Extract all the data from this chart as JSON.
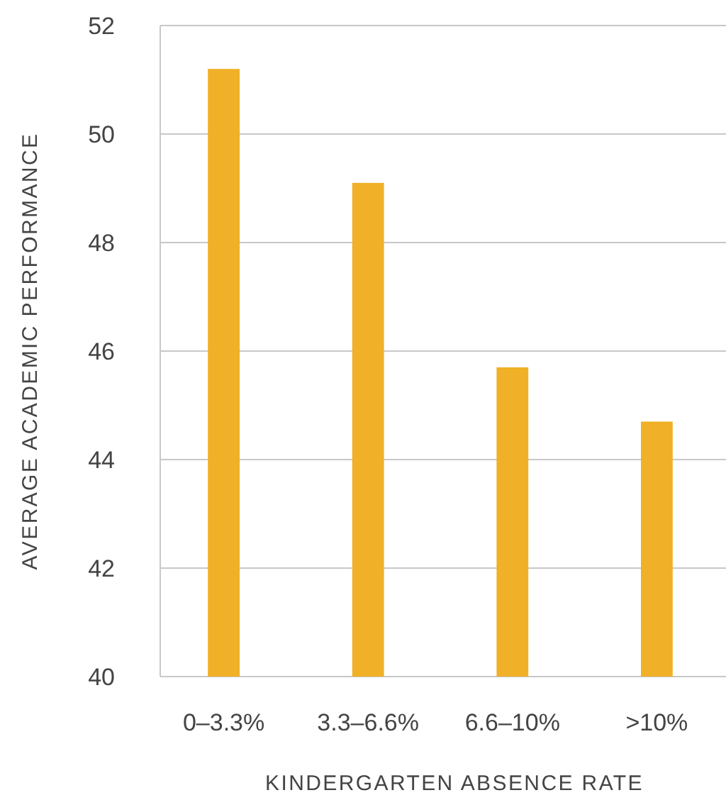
{
  "chart_data": {
    "type": "bar",
    "xlabel": "KINDERGARTEN ABSENCE RATE",
    "ylabel": "AVERAGE ACADEMIC PERFORMANCE",
    "categories": [
      "0–3.3%",
      "3.3–6.6%",
      "6.6–10%",
      ">10%"
    ],
    "values": [
      51.2,
      49.1,
      45.7,
      44.7
    ],
    "color": "#f0b027",
    "ylim": [
      40,
      52
    ],
    "yticks": [
      40,
      42,
      44,
      46,
      48,
      50,
      52
    ],
    "grid": "y"
  }
}
